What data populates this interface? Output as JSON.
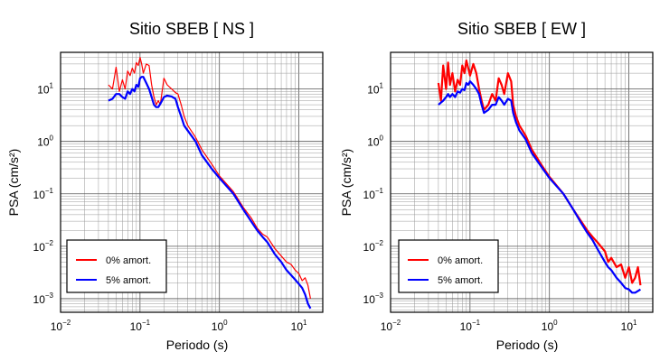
{
  "chart_data": [
    {
      "type": "line",
      "title": "Sitio SBEB [ NS ]",
      "xlabel": "Periodo (s)",
      "ylabel": "PSA (cm/s²)",
      "xscale": "log",
      "yscale": "log",
      "xlim": [
        0.01,
        20
      ],
      "ylim": [
        0.00055,
        50
      ],
      "xticks": [
        {
          "value": 0.01,
          "base": "10",
          "exp": "−2"
        },
        {
          "value": 0.1,
          "base": "10",
          "exp": "−1"
        },
        {
          "value": 1,
          "base": "10",
          "exp": "0"
        },
        {
          "value": 10,
          "base": "10",
          "exp": "1"
        }
      ],
      "yticks": [
        {
          "value": 0.001,
          "base": "10",
          "exp": "−3"
        },
        {
          "value": 0.01,
          "base": "10",
          "exp": "−2"
        },
        {
          "value": 0.1,
          "base": "10",
          "exp": "−1"
        },
        {
          "value": 1,
          "base": "10",
          "exp": "0"
        },
        {
          "value": 10,
          "base": "10",
          "exp": "1"
        }
      ],
      "grid": true,
      "legend_position": "bottom-left",
      "series": [
        {
          "name": "0% amort.",
          "color": "#ff0000",
          "stroke": 1.2,
          "x": [
            0.04,
            0.045,
            0.05,
            0.055,
            0.06,
            0.065,
            0.07,
            0.075,
            0.08,
            0.085,
            0.09,
            0.095,
            0.1,
            0.105,
            0.11,
            0.12,
            0.13,
            0.14,
            0.15,
            0.16,
            0.17,
            0.18,
            0.2,
            0.22,
            0.25,
            0.28,
            0.3,
            0.33,
            0.36,
            0.4,
            0.5,
            0.6,
            0.8,
            1,
            1.5,
            2,
            2.5,
            3,
            3.5,
            4,
            5,
            6,
            7,
            8,
            9,
            10,
            11,
            12,
            13,
            14
          ],
          "y": [
            12,
            10,
            26,
            9,
            15,
            10,
            22,
            18,
            25,
            20,
            32,
            28,
            40,
            30,
            20,
            30,
            28,
            12,
            7,
            5,
            6,
            5,
            16,
            12,
            10,
            8.5,
            8,
            5,
            3,
            2,
            1.2,
            0.7,
            0.37,
            0.22,
            0.11,
            0.055,
            0.035,
            0.022,
            0.017,
            0.015,
            0.009,
            0.0065,
            0.005,
            0.0045,
            0.0035,
            0.003,
            0.0022,
            0.0025,
            0.0018,
            0.001
          ]
        },
        {
          "name": "5% amort.",
          "color": "#0000ff",
          "stroke": 2.2,
          "x": [
            0.04,
            0.045,
            0.05,
            0.055,
            0.06,
            0.065,
            0.07,
            0.075,
            0.08,
            0.085,
            0.09,
            0.095,
            0.1,
            0.105,
            0.11,
            0.12,
            0.13,
            0.14,
            0.15,
            0.16,
            0.17,
            0.18,
            0.2,
            0.22,
            0.25,
            0.28,
            0.3,
            0.33,
            0.36,
            0.4,
            0.5,
            0.6,
            0.8,
            1,
            1.5,
            2,
            2.5,
            3,
            3.5,
            4,
            5,
            6,
            7,
            8,
            9,
            10,
            11,
            12,
            13,
            14
          ],
          "y": [
            6,
            6.5,
            8,
            8,
            7,
            6.5,
            9,
            8,
            10,
            9,
            12,
            11,
            16,
            17,
            17,
            13,
            10,
            7,
            5,
            4.5,
            4.5,
            5.2,
            7,
            7.5,
            7.2,
            6.5,
            4.5,
            3,
            2,
            1.6,
            1,
            0.55,
            0.3,
            0.2,
            0.1,
            0.05,
            0.03,
            0.02,
            0.015,
            0.012,
            0.007,
            0.005,
            0.0035,
            0.0028,
            0.0023,
            0.0019,
            0.0016,
            0.0012,
            0.0008,
            0.00065
          ]
        }
      ]
    },
    {
      "type": "line",
      "title": "Sitio SBEB [ EW ]",
      "xlabel": "Periodo (s)",
      "ylabel": "PSA (cm/s²)",
      "xscale": "log",
      "yscale": "log",
      "xlim": [
        0.01,
        20
      ],
      "ylim": [
        0.00055,
        50
      ],
      "xticks": [
        {
          "value": 0.01,
          "base": "10",
          "exp": "−2"
        },
        {
          "value": 0.1,
          "base": "10",
          "exp": "−1"
        },
        {
          "value": 1,
          "base": "10",
          "exp": "0"
        },
        {
          "value": 10,
          "base": "10",
          "exp": "1"
        }
      ],
      "yticks": [
        {
          "value": 0.001,
          "base": "10",
          "exp": "−3"
        },
        {
          "value": 0.01,
          "base": "10",
          "exp": "−2"
        },
        {
          "value": 0.1,
          "base": "10",
          "exp": "−1"
        },
        {
          "value": 1,
          "base": "10",
          "exp": "0"
        },
        {
          "value": 10,
          "base": "10",
          "exp": "1"
        }
      ],
      "grid": true,
      "legend_position": "bottom-left",
      "series": [
        {
          "name": "0% amort.",
          "color": "#ff0000",
          "stroke": 2.2,
          "x": [
            0.04,
            0.043,
            0.046,
            0.05,
            0.053,
            0.056,
            0.06,
            0.065,
            0.07,
            0.075,
            0.08,
            0.085,
            0.09,
            0.095,
            0.1,
            0.11,
            0.12,
            0.13,
            0.14,
            0.15,
            0.17,
            0.19,
            0.21,
            0.23,
            0.25,
            0.27,
            0.3,
            0.33,
            0.35,
            0.38,
            0.42,
            0.5,
            0.6,
            0.8,
            1,
            1.5,
            2,
            2.5,
            3,
            3.5,
            4,
            5,
            5.5,
            6,
            7,
            8,
            9,
            10,
            11,
            12,
            13,
            14
          ],
          "y": [
            13,
            6,
            28,
            10,
            32,
            12,
            20,
            9,
            15,
            12,
            28,
            20,
            35,
            25,
            18,
            30,
            20,
            10,
            6,
            4,
            5,
            8,
            6,
            16,
            12,
            8,
            20,
            14,
            5,
            3,
            2,
            1.3,
            0.7,
            0.35,
            0.21,
            0.1,
            0.05,
            0.03,
            0.02,
            0.015,
            0.012,
            0.008,
            0.005,
            0.006,
            0.004,
            0.0045,
            0.0025,
            0.004,
            0.002,
            0.0025,
            0.004,
            0.0018
          ]
        },
        {
          "name": "5% amort.",
          "color": "#0000ff",
          "stroke": 2.2,
          "x": [
            0.04,
            0.043,
            0.046,
            0.05,
            0.053,
            0.056,
            0.06,
            0.065,
            0.07,
            0.075,
            0.08,
            0.085,
            0.09,
            0.095,
            0.1,
            0.11,
            0.12,
            0.13,
            0.14,
            0.15,
            0.17,
            0.19,
            0.21,
            0.23,
            0.25,
            0.27,
            0.3,
            0.33,
            0.35,
            0.38,
            0.42,
            0.5,
            0.6,
            0.8,
            1,
            1.5,
            2,
            2.5,
            3,
            3.5,
            4,
            5,
            5.5,
            6,
            7,
            8,
            9,
            10,
            11,
            12,
            13,
            14
          ],
          "y": [
            5,
            5.5,
            6,
            7,
            8,
            7,
            8,
            7,
            9,
            8.5,
            10,
            9.5,
            13,
            12,
            14,
            12,
            10,
            8,
            5,
            3.5,
            4,
            5,
            5,
            7,
            6,
            5,
            6.5,
            6,
            3.5,
            2.3,
            1.6,
            1.1,
            0.6,
            0.32,
            0.2,
            0.1,
            0.05,
            0.028,
            0.018,
            0.013,
            0.009,
            0.005,
            0.004,
            0.0035,
            0.0025,
            0.002,
            0.0016,
            0.0015,
            0.0013,
            0.0013,
            0.0014,
            0.0015
          ]
        }
      ]
    }
  ]
}
